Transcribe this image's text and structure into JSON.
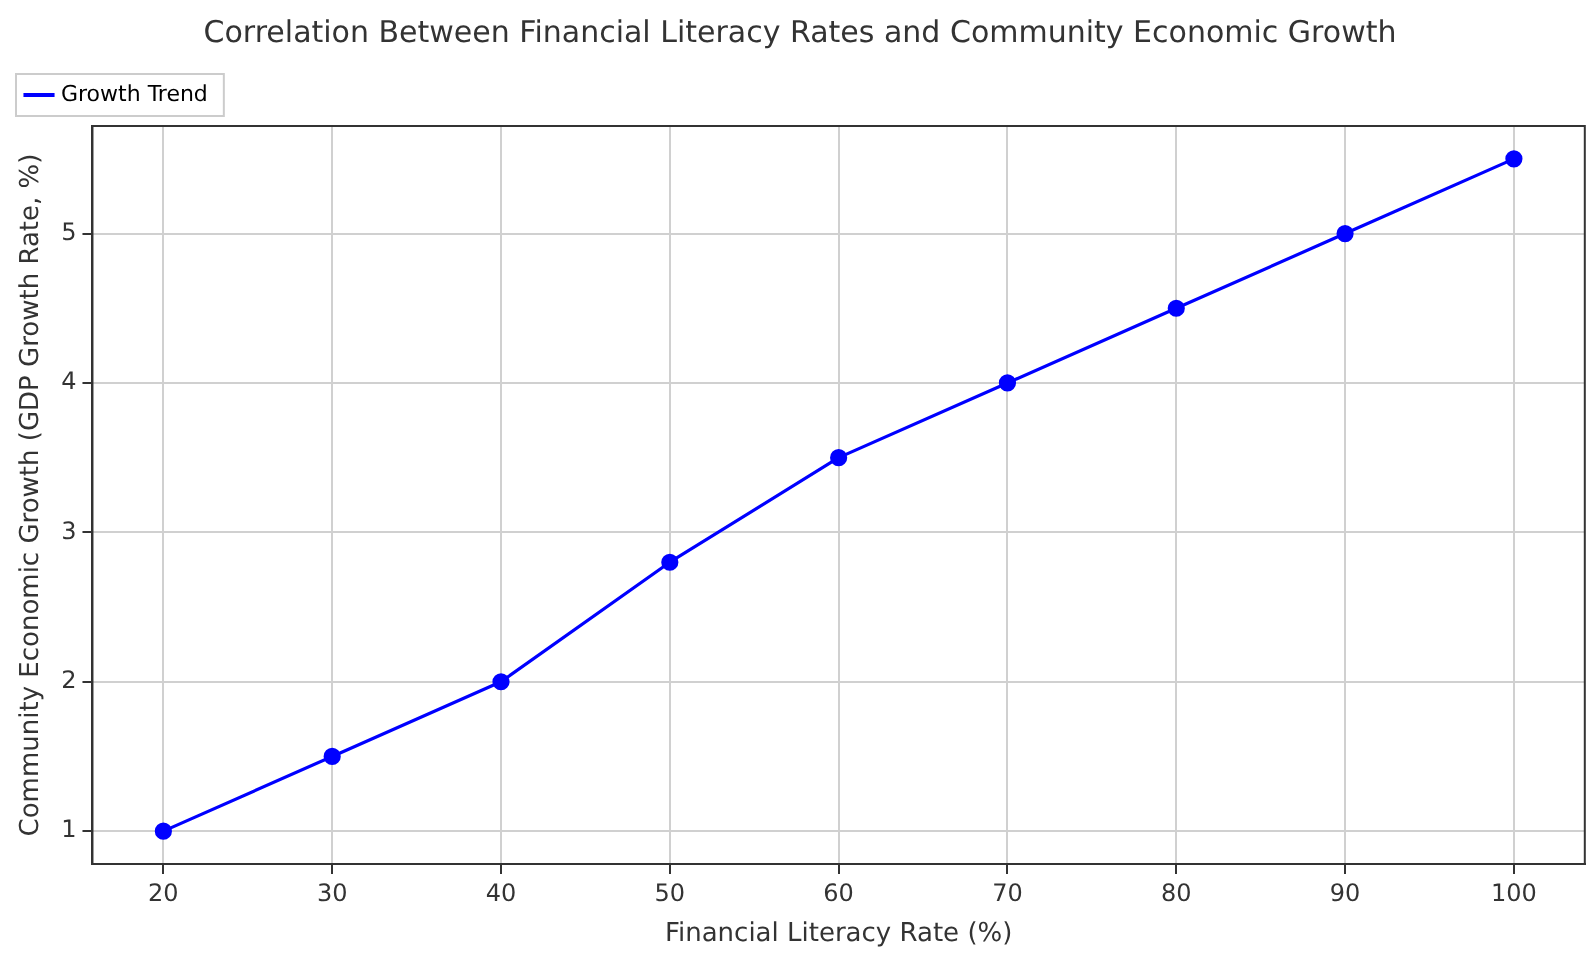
{
  "chart_data": {
    "type": "line",
    "title": "Correlation Between Financial Literacy Rates and Community Economic Growth",
    "xlabel": "Financial Literacy Rate (%)",
    "ylabel": "Community Economic Growth (GDP Growth Rate, %)",
    "x": [
      20,
      30,
      40,
      50,
      60,
      70,
      80,
      90,
      100
    ],
    "series": [
      {
        "name": "Growth Trend",
        "color": "#0000ff",
        "values": [
          1,
          1.5,
          2,
          2.8,
          3.5,
          4,
          4.5,
          5,
          5.5
        ]
      }
    ],
    "xlim": [
      15.8,
      104.2
    ],
    "xticks": [
      20,
      30,
      40,
      50,
      60,
      70,
      80,
      90,
      100
    ],
    "ylim": [
      0.78,
      5.72
    ],
    "yticks": [
      1,
      2,
      3,
      4,
      5
    ],
    "grid": true,
    "legend": "top left",
    "marker": "circle",
    "line_style": "solid"
  }
}
